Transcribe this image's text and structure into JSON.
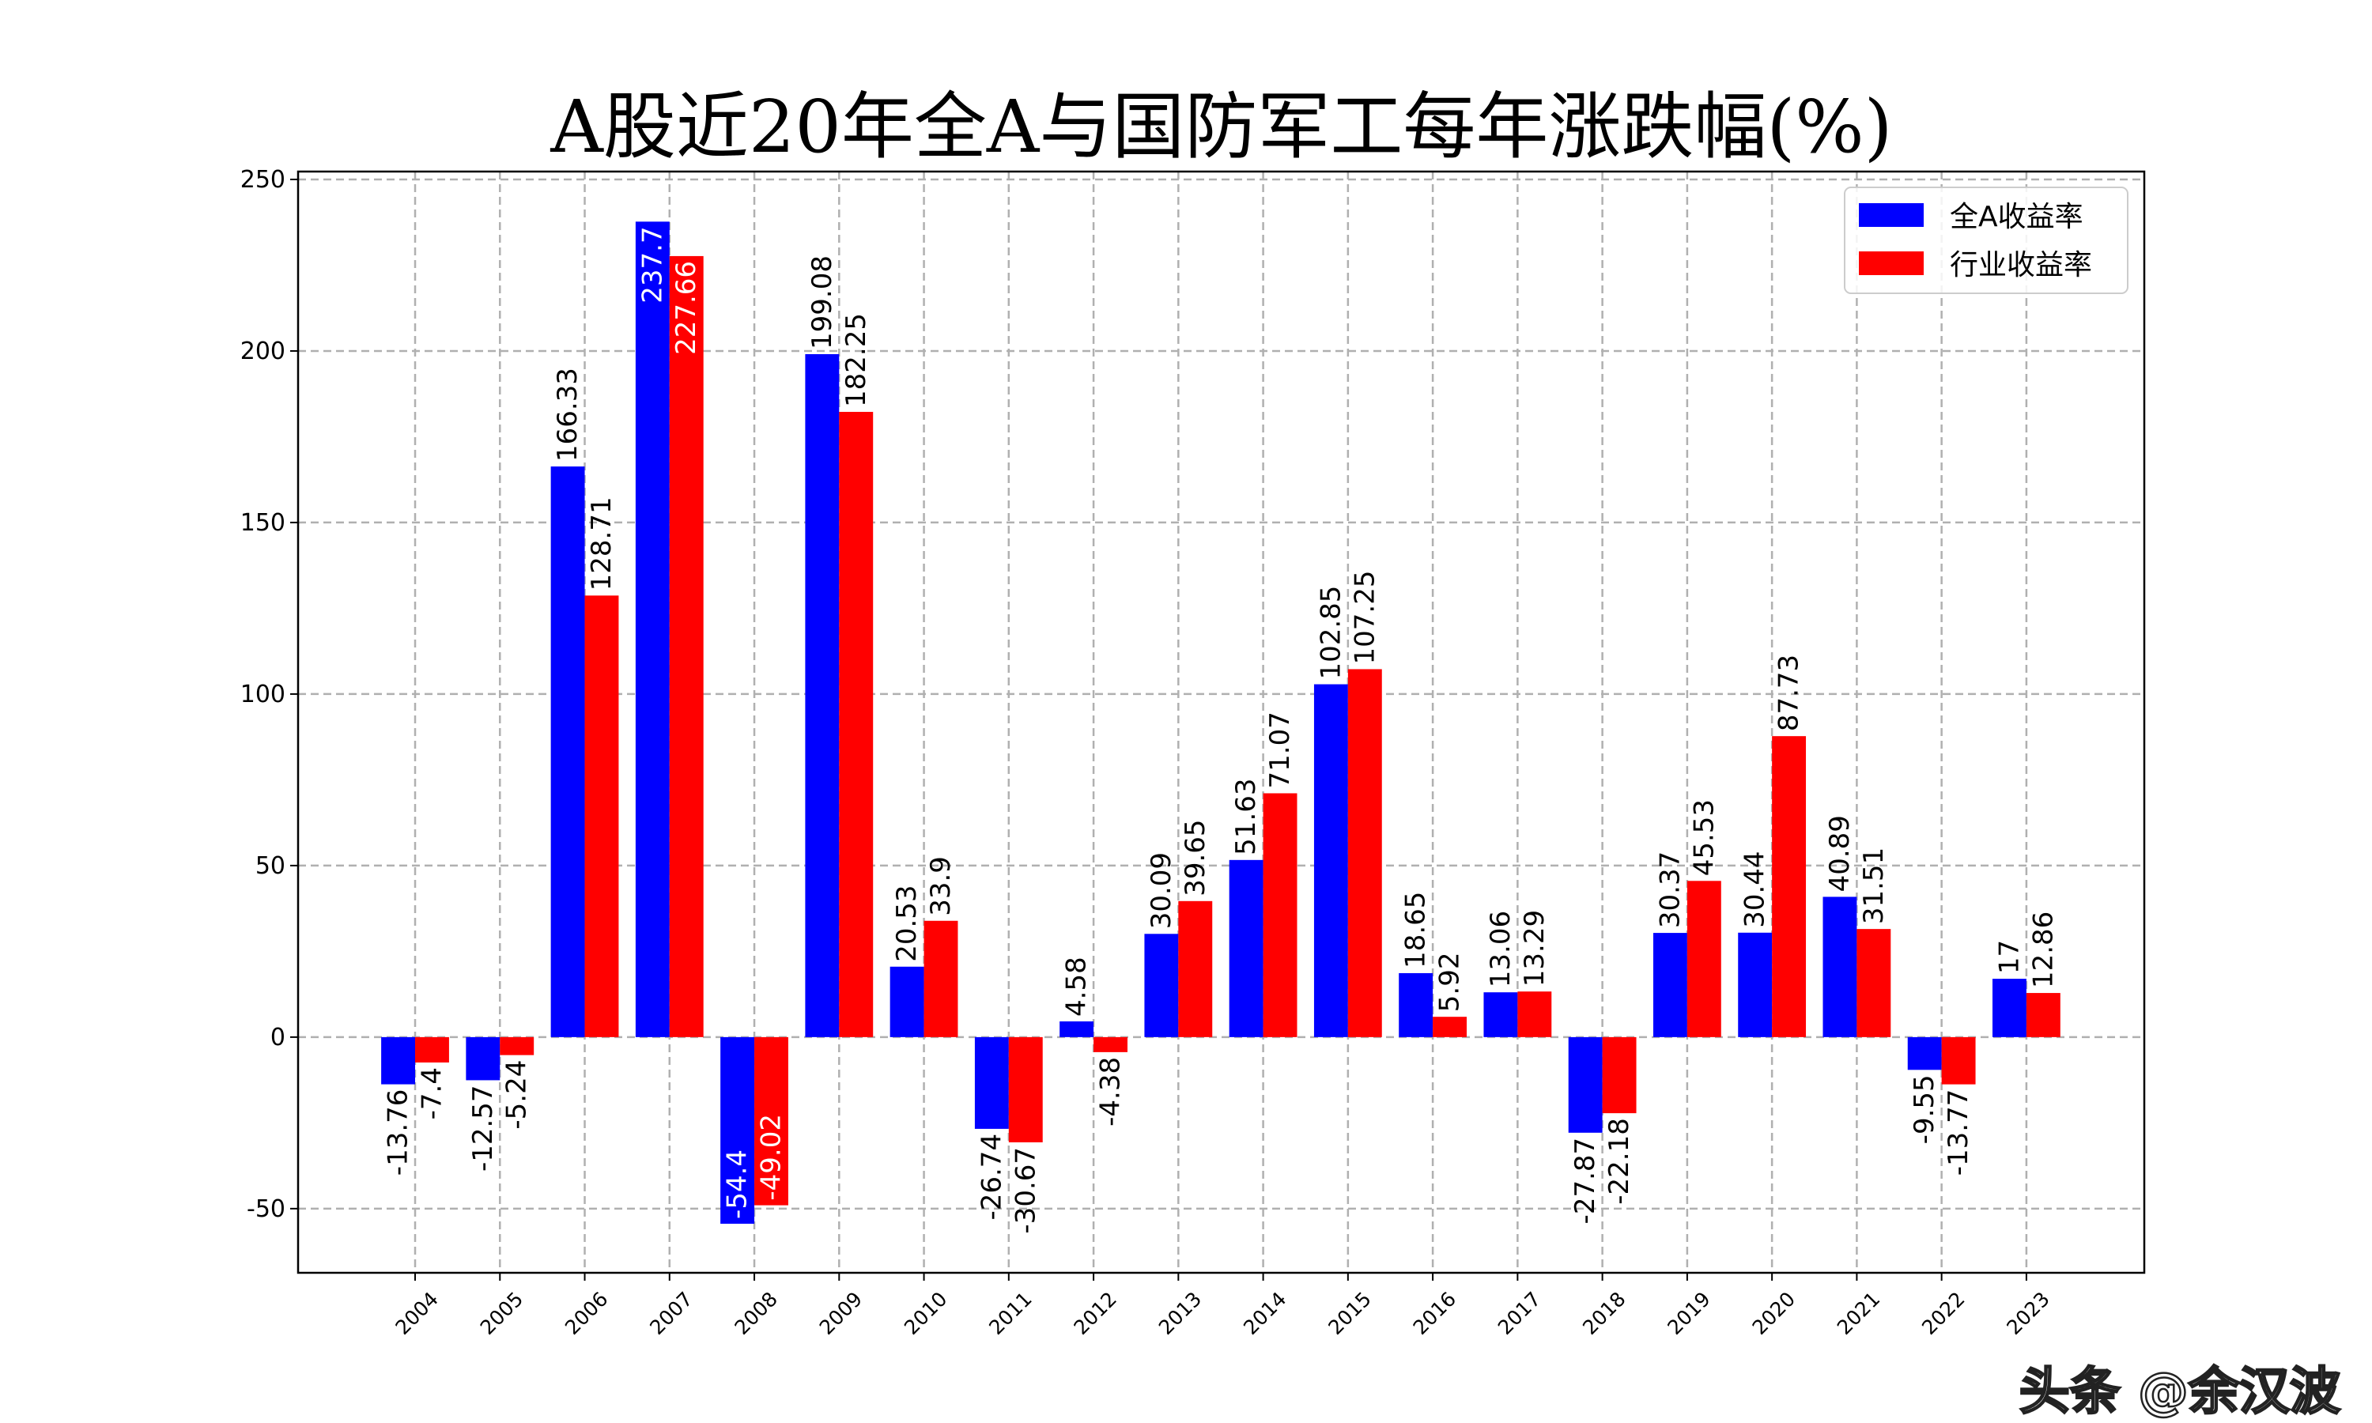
{
  "chart_data": {
    "type": "bar",
    "title": "A股近20年全A与国防军工每年涨跌幅(%)",
    "xlabel": "",
    "ylabel": "",
    "categories": [
      "2004",
      "2005",
      "2006",
      "2007",
      "2008",
      "2009",
      "2010",
      "2011",
      "2012",
      "2013",
      "2014",
      "2015",
      "2016",
      "2017",
      "2018",
      "2019",
      "2020",
      "2021",
      "2022",
      "2023"
    ],
    "series": [
      {
        "name": "全A收益率",
        "color": "#0000ff",
        "values": [
          -13.76,
          -12.57,
          166.33,
          237.7,
          -54.4,
          199.08,
          20.53,
          -26.74,
          4.58,
          30.09,
          51.63,
          102.85,
          18.65,
          13.06,
          -27.87,
          30.37,
          30.44,
          40.89,
          -9.55,
          17.0
        ]
      },
      {
        "name": "行业收益率",
        "color": "#ff0000",
        "values": [
          -7.4,
          -5.24,
          128.71,
          227.66,
          -49.02,
          182.25,
          33.9,
          -30.67,
          -4.38,
          39.65,
          71.07,
          107.25,
          5.92,
          13.29,
          -22.18,
          45.53,
          87.73,
          31.51,
          -13.77,
          12.86
        ]
      }
    ],
    "yticks": [
      "-50",
      "0",
      "50",
      "100",
      "150",
      "200",
      "250"
    ],
    "ylim": [
      -68.7,
      252.3
    ],
    "grid": true,
    "legend_position": "top-right",
    "data_labels": true
  },
  "watermark": "头条 @余汉波"
}
